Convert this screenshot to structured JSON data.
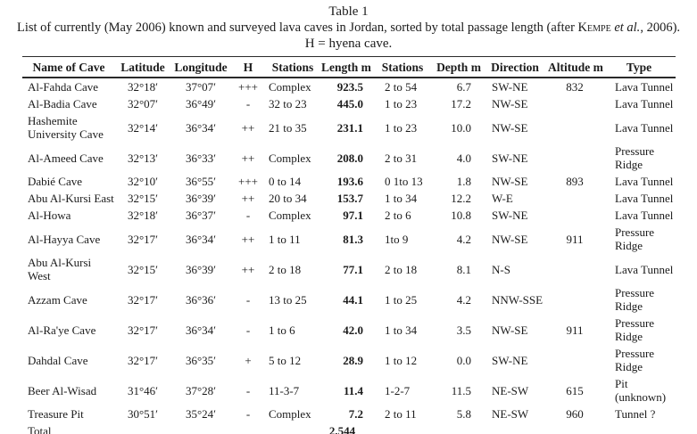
{
  "header": {
    "table_label": "Table 1",
    "caption_prefix": "List of currently (May 2006) known and surveyed lava caves in Jordan, sorted by total passage length (after ",
    "caption_author": "Kempe",
    "caption_etal": " et al.",
    "caption_suffix": ", 2006).",
    "caption_note": "H = hyena cave."
  },
  "table": {
    "columns": [
      "Name of Cave",
      "Latitude",
      "Longitude",
      "H",
      "Stations",
      "Length m",
      "Stations",
      "Depth m",
      "Direction",
      "Altitude m",
      "Type"
    ],
    "rows": [
      [
        "Al-Fahda Cave",
        "32°18′",
        "37°07′",
        "+++",
        "Complex",
        "923.5",
        "2 to 54",
        "6.7",
        "SW-NE",
        "832",
        "Lava Tunnel"
      ],
      [
        "Al-Badia Cave",
        "32°07′",
        "36°49′",
        "-",
        "32 to 23",
        "445.0",
        "1 to 23",
        "17.2",
        "NW-SE",
        "",
        "Lava Tunnel"
      ],
      [
        "Hashemite University Cave",
        "32°14′",
        "36°34′",
        "++",
        "21 to 35",
        "231.1",
        "1 to 23",
        "10.0",
        "NW-SE",
        "",
        "Lava Tunnel"
      ],
      [
        "Al-Ameed Cave",
        "32°13′",
        "36°33′",
        "++",
        "Complex",
        "208.0",
        "2 to 31",
        "4.0",
        "SW-NE",
        "",
        "Pressure Ridge"
      ],
      [
        "Dabié Cave",
        "32°10′",
        "36°55′",
        "+++",
        "0 to 14",
        "193.6",
        "0 1to 13",
        "1.8",
        "NW-SE",
        "893",
        "Lava Tunnel"
      ],
      [
        "Abu Al-Kursi East",
        "32°15′",
        "36°39′",
        "++",
        "20 to 34",
        "153.7",
        "1 to 34",
        "12.2",
        "W-E",
        "",
        "Lava Tunnel"
      ],
      [
        "Al-Howa",
        "32°18′",
        "36°37′",
        "-",
        "Complex",
        "97.1",
        "2 to 6",
        "10.8",
        "SW-NE",
        "",
        "Lava Tunnel"
      ],
      [
        "Al-Hayya Cave",
        "32°17′",
        "36°34′",
        "++",
        "1 to 11",
        "81.3",
        "1to 9",
        "4.2",
        "NW-SE",
        "911",
        "Pressure Ridge"
      ],
      [
        "Abu Al-Kursi West",
        "32°15′",
        "36°39′",
        "++",
        "2 to 18",
        "77.1",
        "2 to 18",
        "8.1",
        "N-S",
        "",
        "Lava Tunnel"
      ],
      [
        "Azzam Cave",
        "32°17′",
        "36°36′",
        "-",
        "13 to 25",
        "44.1",
        "1 to 25",
        "4.2",
        "NNW-SSE",
        "",
        "Pressure Ridge"
      ],
      [
        "Al-Ra'ye Cave",
        "32°17′",
        "36°34′",
        "-",
        "1 to 6",
        "42.0",
        "1 to 34",
        "3.5",
        "NW-SE",
        "911",
        "Pressure Ridge"
      ],
      [
        "Dahdal Cave",
        "32°17′",
        "36°35′",
        "+",
        "5 to 12",
        "28.9",
        "1 to 12",
        "0.0",
        "SW-NE",
        "",
        "Pressure Ridge"
      ],
      [
        "Beer Al-Wisad",
        "31°46′",
        "37°28′",
        "-",
        "11-3-7",
        "11.4",
        "1-2-7",
        "11.5",
        "NE-SW",
        "615",
        "Pit (unknown)"
      ],
      [
        "Treasure Pit",
        "30°51′",
        "35°24′",
        "-",
        "Complex",
        "7.2",
        "2 to 11",
        "5.8",
        "NE-SW",
        "960",
        "Tunnel ?"
      ]
    ],
    "total": {
      "label": "Total",
      "length_sum": "2,544"
    }
  }
}
